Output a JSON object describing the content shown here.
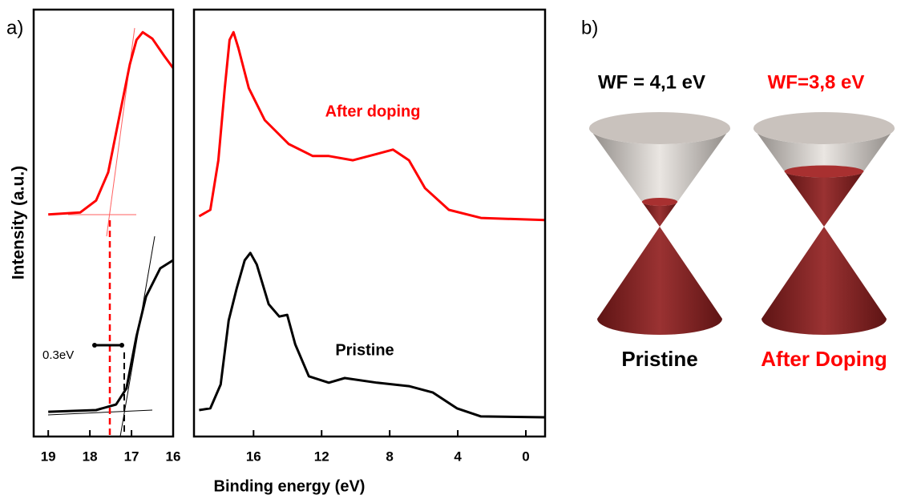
{
  "panel_labels": [
    "a)",
    "b)"
  ],
  "chart_data": [
    {
      "type": "line",
      "ylabel": "Intensity (a.u.)",
      "annotation": "0.3eV",
      "xlim": [
        19.35,
        16
      ],
      "xticks": [
        19,
        18,
        17,
        16
      ],
      "ylim": [
        0,
        100
      ],
      "series": [
        {
          "name": "After doping",
          "color": "#ff0000",
          "x": [
            19.0,
            18.23,
            17.85,
            17.56,
            17.27,
            17.04,
            16.88,
            16.73,
            16.5,
            16.21,
            16.0
          ],
          "values": [
            52.0,
            52.5,
            55.3,
            61.9,
            76.0,
            87.2,
            92.9,
            94.7,
            93.2,
            89.1,
            86.3
          ]
        },
        {
          "name": "Pristine",
          "color": "#000000",
          "x": [
            19.0,
            17.85,
            17.37,
            17.12,
            16.88,
            16.65,
            16.31,
            16.0
          ],
          "values": [
            5.8,
            6.2,
            7.5,
            11.3,
            23.5,
            32.8,
            39.4,
            41.3
          ]
        }
      ]
    },
    {
      "type": "line",
      "xlabel": "Binding energy (eV)",
      "xlim": [
        19.5,
        -1.13
      ],
      "xticks": [
        16,
        12,
        8,
        4,
        0
      ],
      "ylim": [
        0,
        100
      ],
      "series": [
        {
          "name": "After doping",
          "color": "#ff0000",
          "x": [
            19.2,
            18.54,
            18.07,
            17.69,
            17.41,
            17.18,
            16.89,
            16.28,
            15.34,
            13.93,
            12.52,
            11.58,
            10.16,
            8.75,
            7.81,
            6.87,
            5.93,
            4.52,
            2.64,
            -1.13
          ],
          "values": [
            51.6,
            53.1,
            64.7,
            81.6,
            92.9,
            94.7,
            91.0,
            81.6,
            74.1,
            68.5,
            65.7,
            65.7,
            64.7,
            66.2,
            67.2,
            64.7,
            58.2,
            53.1,
            51.2,
            50.7
          ]
        },
        {
          "name": "Pristine",
          "color": "#000000",
          "x": [
            19.2,
            18.54,
            17.93,
            17.46,
            16.99,
            16.52,
            16.19,
            15.81,
            15.11,
            14.49,
            14.02,
            13.55,
            12.75,
            11.58,
            10.64,
            8.75,
            6.87,
            5.46,
            4.05,
            2.64,
            -1.13
          ],
          "values": [
            6.2,
            6.6,
            12.2,
            27.2,
            34.7,
            41.3,
            43.0,
            40.3,
            31.0,
            28.1,
            28.5,
            21.6,
            14.1,
            12.6,
            13.7,
            12.6,
            11.8,
            10.3,
            6.6,
            4.7,
            4.5
          ]
        }
      ]
    }
  ],
  "diagram": {
    "cones": [
      {
        "wf_label": "WF = 4,1 eV",
        "caption": "Pristine",
        "color": "#000000"
      },
      {
        "wf_label": "WF=3,8 eV",
        "caption": "After Doping",
        "color": "#ff0000"
      }
    ]
  }
}
